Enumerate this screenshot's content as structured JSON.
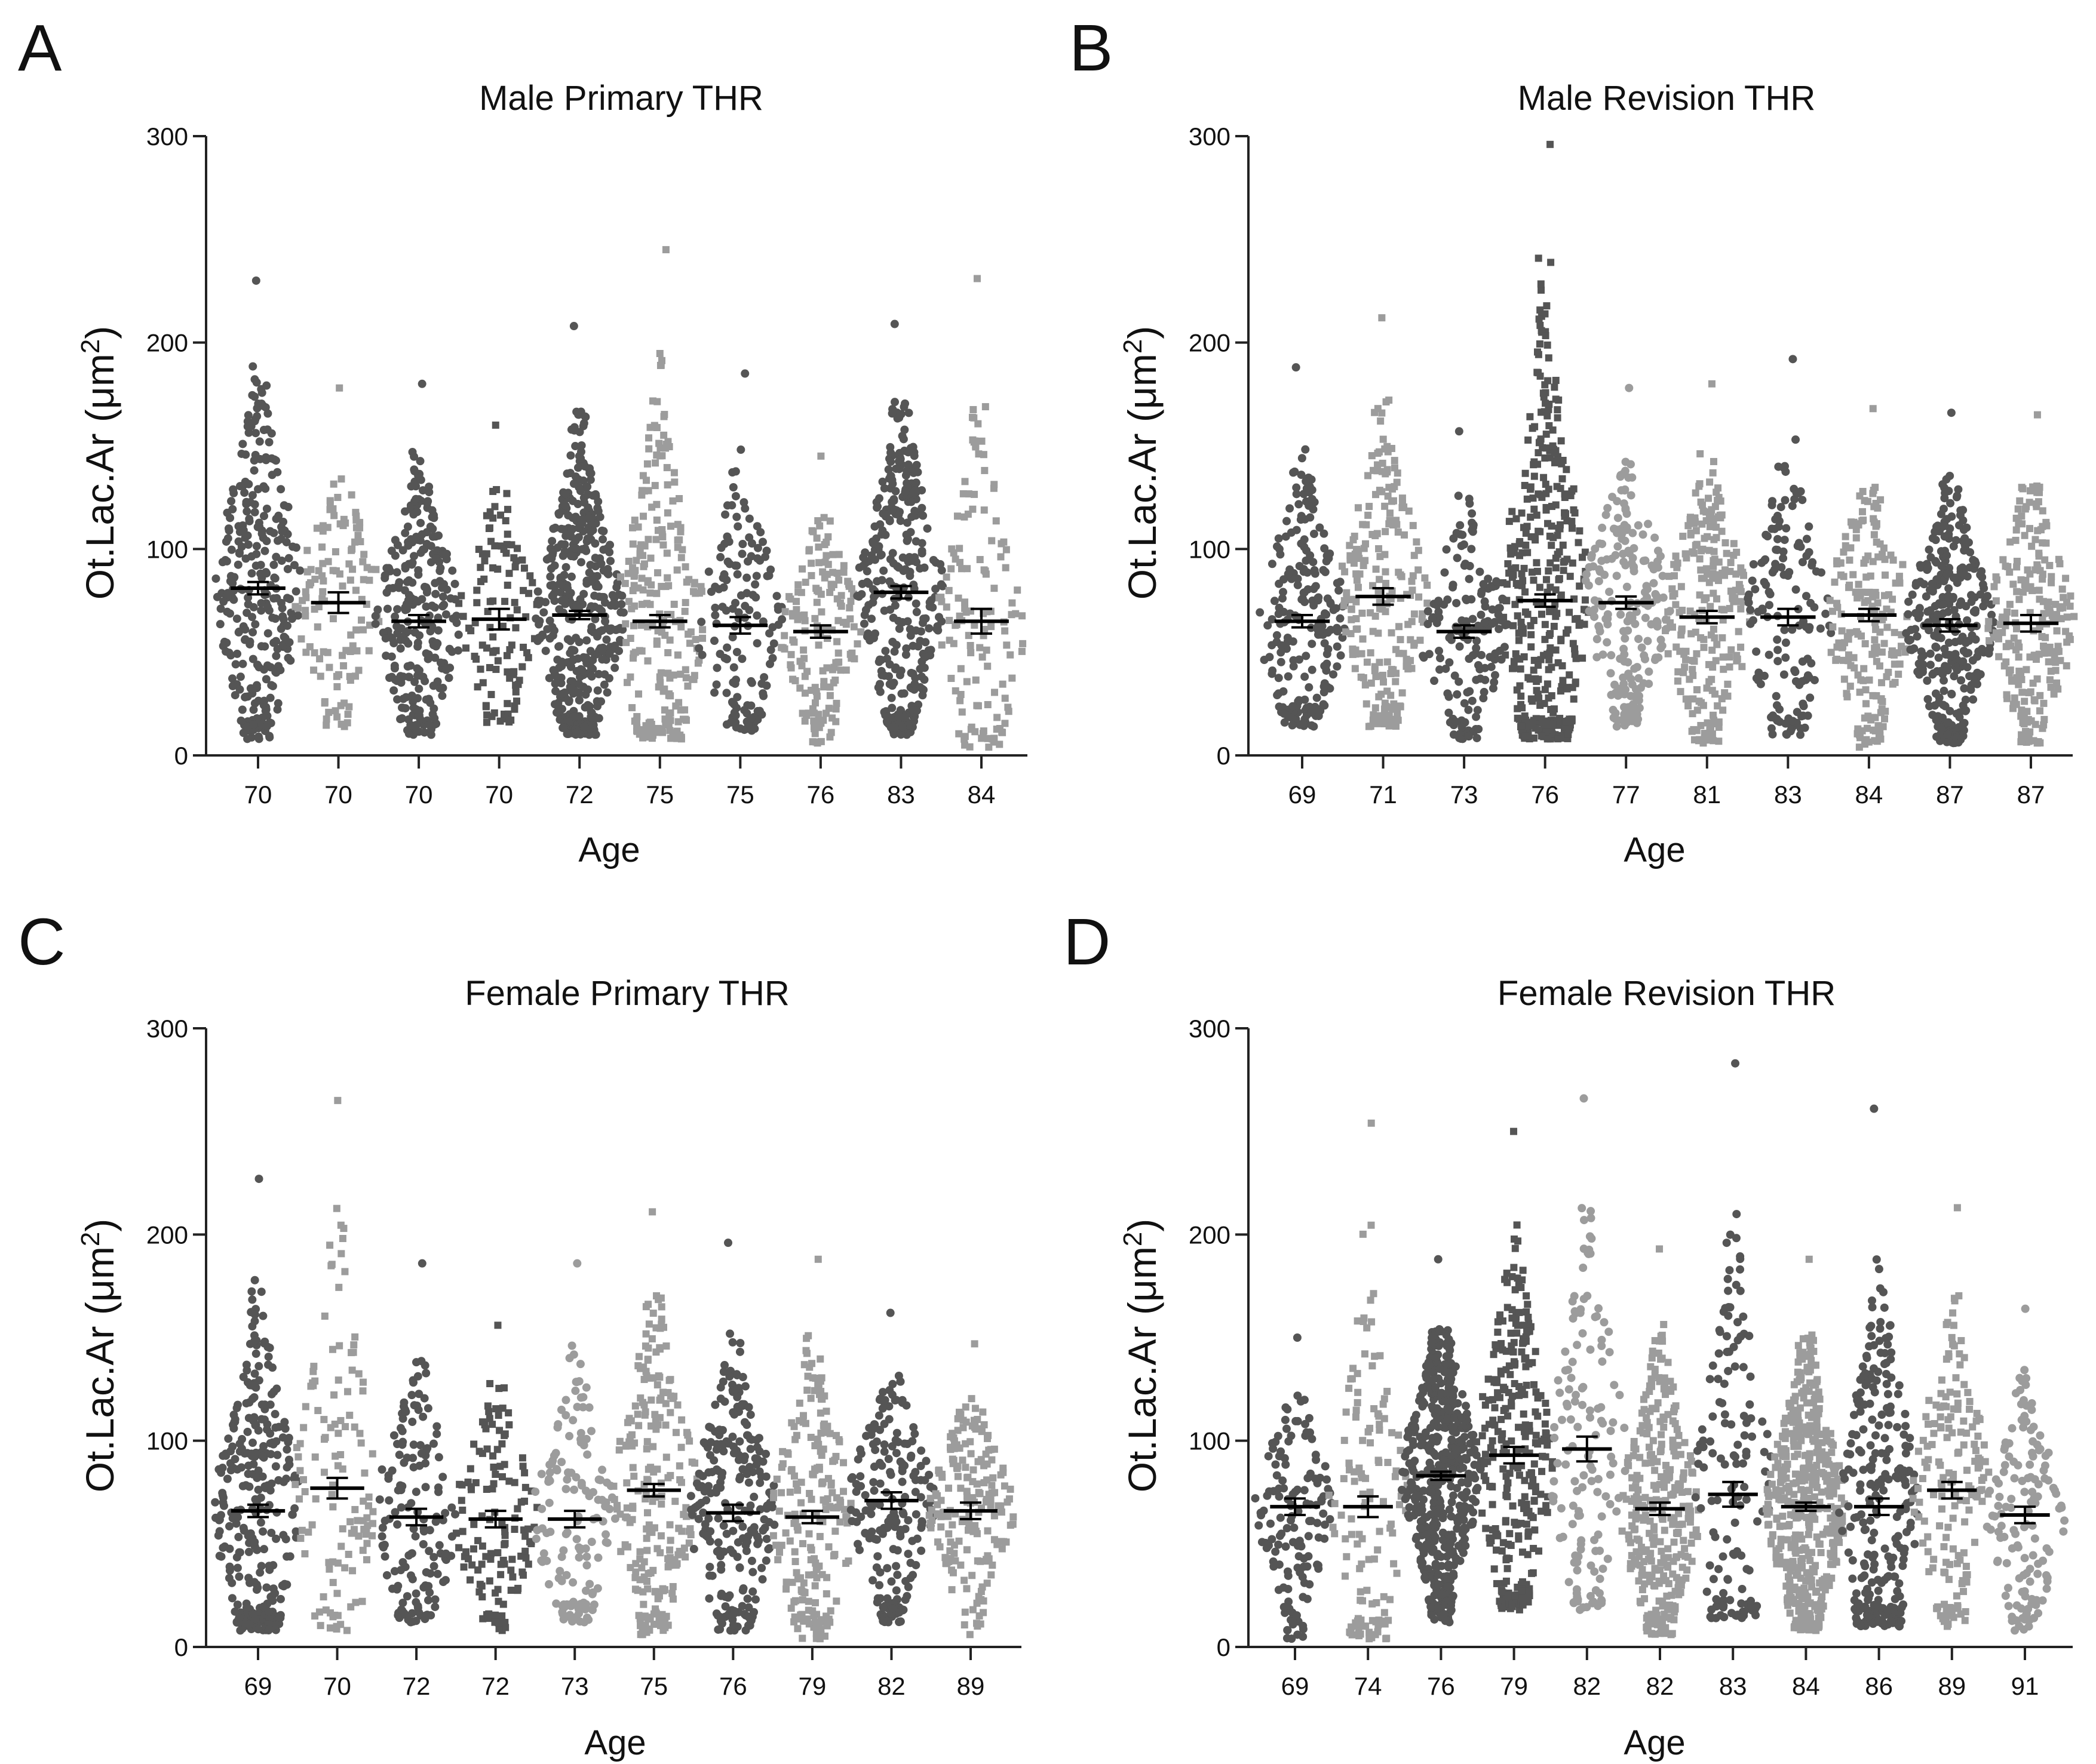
{
  "figure": {
    "panel_letters": [
      "A",
      "B",
      "C",
      "D"
    ],
    "xlabel": "Age",
    "ylabel_prefix": "Ot.Lac.Ar (μm",
    "ylabel_sup": "2",
    "ylabel_suffix": ")",
    "colors": {
      "dark": "#555555",
      "light": "#9c9c9c",
      "mean": "#000000",
      "axis": "#222222"
    }
  },
  "chart_data": [
    {
      "type": "scatter",
      "panel": "A",
      "title": "Male Primary THR",
      "xlabel": "Age",
      "ylabel": "Ot.Lac.Ar (μm2)",
      "ylim": [
        0,
        300
      ],
      "yticks": [
        0,
        100,
        200,
        300
      ],
      "categories": [
        "70",
        "70",
        "70",
        "70",
        "72",
        "75",
        "75",
        "76",
        "83",
        "84"
      ],
      "means": [
        81,
        74,
        65,
        66,
        68,
        65,
        63,
        60,
        79,
        65
      ],
      "sem": [
        3,
        5,
        3,
        5,
        2,
        3,
        4,
        3,
        3,
        6
      ],
      "n": [
        300,
        120,
        270,
        110,
        450,
        240,
        150,
        160,
        330,
        130
      ],
      "max_value": [
        230,
        178,
        180,
        160,
        208,
        245,
        185,
        145,
        209,
        231
      ],
      "min_value": [
        8,
        14,
        10,
        16,
        10,
        8,
        12,
        6,
        10,
        4
      ],
      "shade": [
        "dark",
        "light",
        "dark",
        "dark",
        "dark",
        "light",
        "dark",
        "light",
        "dark",
        "light"
      ]
    },
    {
      "type": "scatter",
      "panel": "B",
      "title": "Male Revision THR",
      "xlabel": "Age",
      "ylabel": "Ot.Lac.Ar (μm2)",
      "ylim": [
        0,
        300
      ],
      "yticks": [
        0,
        100,
        200,
        300
      ],
      "categories": [
        "69",
        "71",
        "73",
        "76",
        "77",
        "81",
        "83",
        "84",
        "87",
        "87"
      ],
      "means": [
        65,
        77,
        60,
        75,
        74,
        67,
        67,
        68,
        63,
        64
      ],
      "sem": [
        3,
        4,
        3,
        3,
        3,
        3,
        4,
        3,
        3,
        4
      ],
      "n": [
        220,
        230,
        160,
        400,
        210,
        230,
        150,
        200,
        330,
        220
      ],
      "max_value": [
        188,
        212,
        157,
        296,
        178,
        180,
        192,
        168,
        166,
        165
      ],
      "min_value": [
        14,
        14,
        8,
        8,
        14,
        6,
        10,
        4,
        6,
        6
      ],
      "shade": [
        "dark",
        "light",
        "dark",
        "dark",
        "light",
        "light",
        "dark",
        "light",
        "dark",
        "light"
      ]
    },
    {
      "type": "scatter",
      "panel": "C",
      "title": "Female Primary THR",
      "xlabel": "Age",
      "ylabel": "Ot.Lac.Ar (μm2)",
      "ylim": [
        0,
        300
      ],
      "yticks": [
        0,
        100,
        200,
        300
      ],
      "categories": [
        "69",
        "70",
        "72",
        "72",
        "73",
        "75",
        "76",
        "79",
        "82",
        "89"
      ],
      "means": [
        66,
        77,
        63,
        62,
        62,
        76,
        65,
        63,
        71,
        66
      ],
      "sem": [
        3,
        5,
        4,
        4,
        4,
        3,
        4,
        3,
        4,
        4
      ],
      "n": [
        300,
        120,
        150,
        130,
        140,
        230,
        240,
        210,
        200,
        190
      ],
      "max_value": [
        227,
        265,
        186,
        156,
        186,
        211,
        196,
        188,
        162,
        147
      ],
      "min_value": [
        8,
        8,
        12,
        8,
        12,
        6,
        8,
        4,
        12,
        6
      ],
      "shade": [
        "dark",
        "light",
        "dark",
        "dark",
        "light",
        "light",
        "dark",
        "light",
        "dark",
        "light"
      ]
    },
    {
      "type": "scatter",
      "panel": "D",
      "title": "Female Revision THR",
      "xlabel": "Age",
      "ylabel": "Ot.Lac.Ar (μm2)",
      "ylim": [
        0,
        300
      ],
      "yticks": [
        0,
        100,
        200,
        300
      ],
      "categories": [
        "69",
        "74",
        "76",
        "79",
        "82",
        "82",
        "83",
        "84",
        "86",
        "89",
        "91"
      ],
      "means": [
        68,
        68,
        83,
        93,
        96,
        67,
        74,
        68,
        68,
        76,
        64
      ],
      "sem": [
        4,
        5,
        2,
        4,
        6,
        3,
        6,
        2,
        4,
        4,
        4
      ],
      "n": [
        140,
        130,
        520,
        300,
        140,
        330,
        140,
        520,
        270,
        170,
        140
      ],
      "max_value": [
        150,
        254,
        188,
        250,
        266,
        193,
        283,
        188,
        261,
        213,
        164
      ],
      "min_value": [
        4,
        4,
        12,
        18,
        18,
        6,
        14,
        8,
        10,
        10,
        8
      ],
      "shade": [
        "dark",
        "light",
        "dark",
        "dark",
        "light",
        "light",
        "dark",
        "light",
        "dark",
        "light",
        "light"
      ]
    }
  ]
}
